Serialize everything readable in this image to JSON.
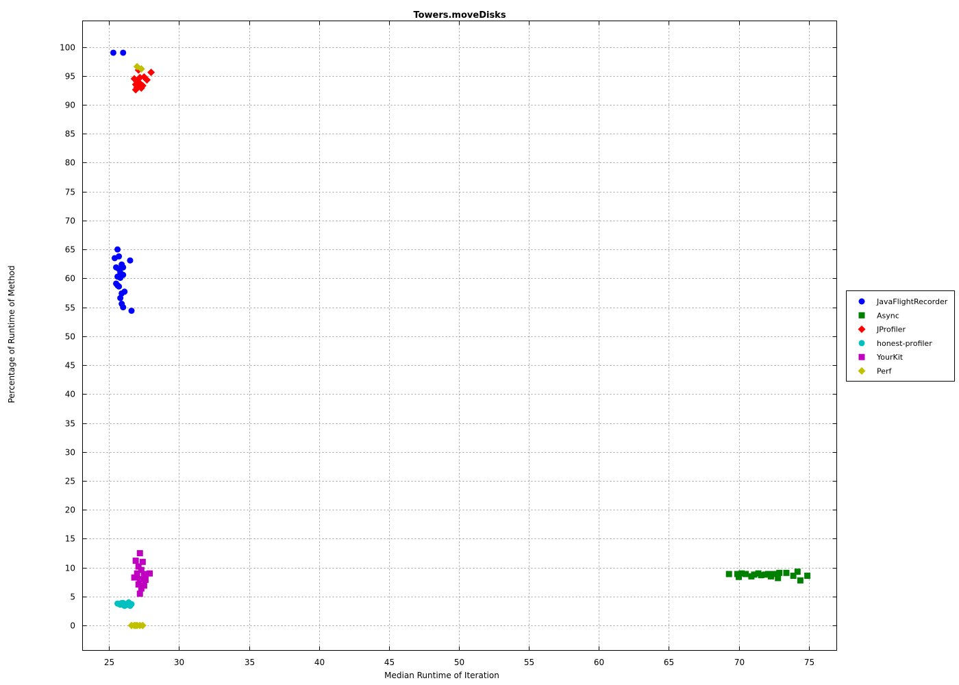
{
  "chart_data": {
    "type": "scatter",
    "title": "Towers.moveDisks",
    "xlabel": "Median Runtime of Iteration",
    "ylabel": "Percentage of Runtime of Method",
    "xlim": [
      23.1,
      77.0
    ],
    "ylim": [
      -4.3,
      104.5
    ],
    "xticks": [
      25,
      30,
      35,
      40,
      45,
      50,
      55,
      60,
      65,
      70,
      75
    ],
    "yticks": [
      0,
      5,
      10,
      15,
      20,
      25,
      30,
      35,
      40,
      45,
      50,
      55,
      60,
      65,
      70,
      75,
      80,
      85,
      90,
      95,
      100
    ],
    "grid": true,
    "legend_position": "right",
    "series": [
      {
        "name": "JavaFlightRecorder",
        "marker": "circle",
        "color": "#0000ff",
        "points": [
          [
            25.3,
            99.0
          ],
          [
            26.0,
            99.0
          ],
          [
            25.6,
            65.0
          ],
          [
            25.4,
            63.5
          ],
          [
            25.7,
            63.8
          ],
          [
            26.5,
            63.1
          ],
          [
            25.9,
            62.4
          ],
          [
            25.5,
            61.9
          ],
          [
            25.7,
            61.6
          ],
          [
            26.0,
            61.9
          ],
          [
            25.8,
            61.0
          ],
          [
            25.6,
            60.3
          ],
          [
            25.8,
            60.1
          ],
          [
            26.0,
            60.6
          ],
          [
            25.5,
            59.1
          ],
          [
            25.7,
            58.6
          ],
          [
            25.6,
            58.8
          ],
          [
            25.9,
            57.4
          ],
          [
            26.1,
            57.7
          ],
          [
            25.8,
            56.6
          ],
          [
            25.9,
            55.6
          ],
          [
            26.0,
            55.0
          ],
          [
            26.6,
            54.4
          ]
        ]
      },
      {
        "name": "Async",
        "marker": "square",
        "color": "#008000",
        "points": [
          [
            69.3,
            8.9
          ],
          [
            69.9,
            8.9
          ],
          [
            70.0,
            8.4
          ],
          [
            70.2,
            9.0
          ],
          [
            70.5,
            8.9
          ],
          [
            70.9,
            8.5
          ],
          [
            71.1,
            8.8
          ],
          [
            71.4,
            9.0
          ],
          [
            71.6,
            8.7
          ],
          [
            71.9,
            8.8
          ],
          [
            72.1,
            8.9
          ],
          [
            72.3,
            8.5
          ],
          [
            72.5,
            8.9
          ],
          [
            72.8,
            8.2
          ],
          [
            72.9,
            9.1
          ],
          [
            73.4,
            9.1
          ],
          [
            73.9,
            8.6
          ],
          [
            74.2,
            9.3
          ],
          [
            74.4,
            7.8
          ],
          [
            74.9,
            8.6
          ]
        ]
      },
      {
        "name": "JProfiler",
        "marker": "diamond",
        "color": "#ff0000",
        "points": [
          [
            27.1,
            96.0
          ],
          [
            28.0,
            95.6
          ],
          [
            26.8,
            94.5
          ],
          [
            27.2,
            94.7
          ],
          [
            27.5,
            94.8
          ],
          [
            27.0,
            94.0
          ],
          [
            27.7,
            94.3
          ],
          [
            26.9,
            93.5
          ],
          [
            27.2,
            93.7
          ],
          [
            27.4,
            93.3
          ],
          [
            27.0,
            93.0
          ],
          [
            27.3,
            92.9
          ],
          [
            26.9,
            92.6
          ]
        ]
      },
      {
        "name": "honest-profiler",
        "marker": "circle",
        "color": "#00c0c0",
        "points": [
          [
            25.6,
            3.8
          ],
          [
            25.8,
            3.6
          ],
          [
            26.0,
            3.9
          ],
          [
            26.2,
            3.5
          ],
          [
            26.3,
            3.8
          ],
          [
            26.4,
            4.0
          ],
          [
            26.6,
            3.7
          ],
          [
            26.1,
            3.4
          ],
          [
            26.5,
            3.4
          ],
          [
            25.9,
            3.9
          ]
        ]
      },
      {
        "name": "YourKit",
        "marker": "square",
        "color": "#c000c0",
        "points": [
          [
            27.2,
            12.5
          ],
          [
            26.9,
            11.2
          ],
          [
            27.4,
            11.0
          ],
          [
            27.1,
            10.2
          ],
          [
            27.3,
            9.6
          ],
          [
            27.0,
            9.0
          ],
          [
            27.6,
            8.9
          ],
          [
            27.9,
            9.0
          ],
          [
            26.8,
            8.3
          ],
          [
            27.5,
            8.6
          ],
          [
            27.2,
            8.0
          ],
          [
            27.6,
            7.9
          ],
          [
            27.1,
            7.1
          ],
          [
            27.5,
            6.9
          ],
          [
            27.3,
            6.4
          ],
          [
            27.2,
            5.5
          ]
        ]
      },
      {
        "name": "Perf",
        "marker": "diamond",
        "color": "#c0c000",
        "points": [
          [
            27.0,
            96.6
          ],
          [
            27.3,
            96.2
          ],
          [
            26.6,
            0.0
          ],
          [
            26.8,
            0.0
          ],
          [
            27.0,
            0.0
          ],
          [
            27.2,
            0.0
          ],
          [
            27.4,
            0.0
          ],
          [
            26.9,
            0.0
          ]
        ]
      }
    ]
  }
}
